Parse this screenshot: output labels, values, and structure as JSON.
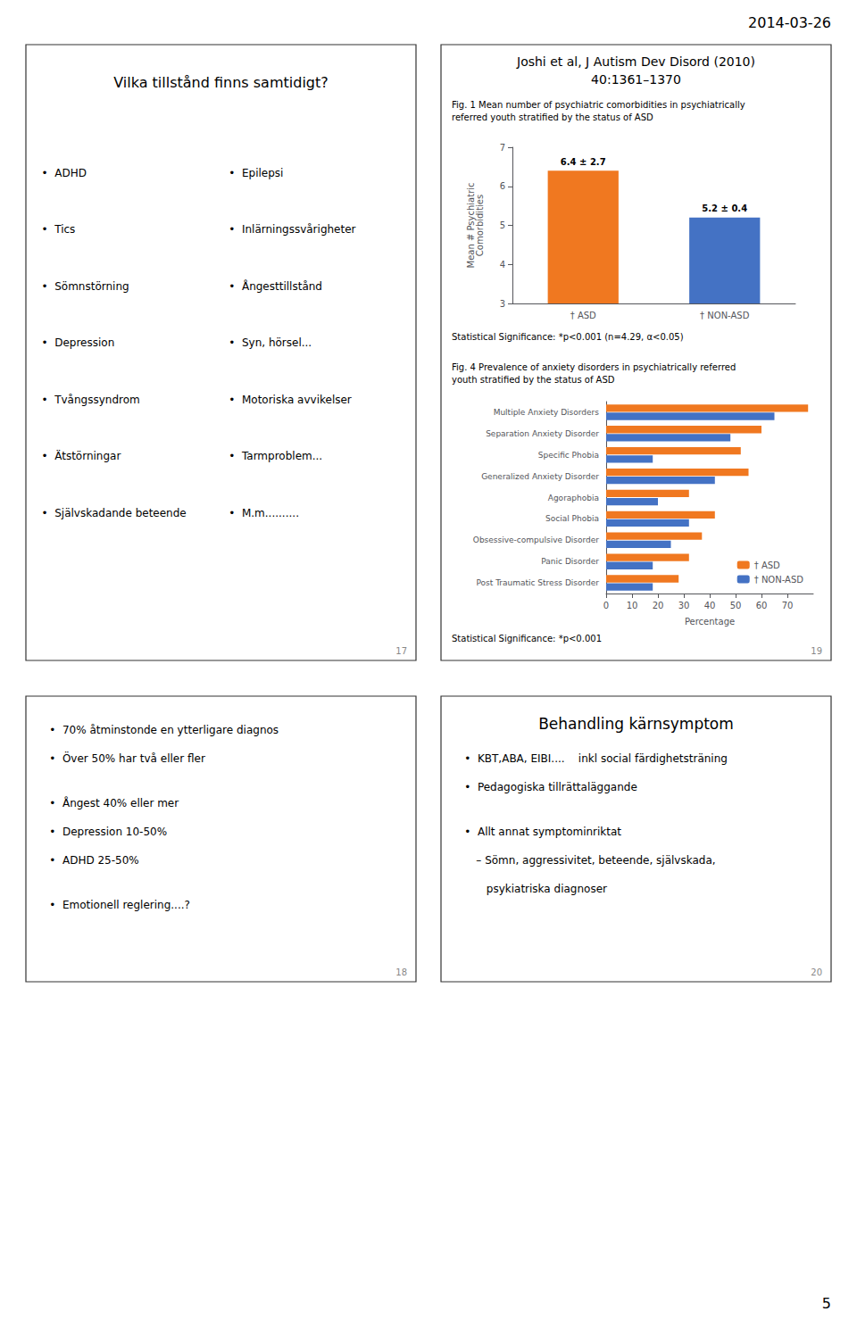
{
  "date": "2014-03-26",
  "page_number": "5",
  "slides": [
    {
      "slide_number": "17",
      "title": "Vilka tillstånd finns samtidigt?",
      "columns": [
        [
          "•  ADHD",
          "•  Tics",
          "•  Sömnstörning",
          "•  Depression",
          "•  Tvångssyndrom",
          "•  Ätstörningar",
          "•  Självskadande beteende"
        ],
        [
          "•  Epilepsi",
          "•  Inlärningssvårigheter",
          "•  Ångesttillstånd",
          "•  Syn, hörsel...",
          "•  Motoriska avvikelser",
          "•  Tarmproblem...",
          "•  M.m.........."
        ]
      ]
    },
    {
      "slide_number": "19",
      "title": [
        "Joshi et al, J Autism Dev Disord (2010)",
        "40:1361–1370"
      ]
    },
    {
      "slide_number": "18",
      "groups": [
        [
          "•  70% åtminstonde en ytterligare diagnos",
          "•  Över 50% har två eller fler"
        ],
        [
          "•  Ångest 40% eller mer",
          "•  Depression 10-50%",
          "•  ADHD 25-50%"
        ],
        [
          "•  Emotionell reglering....?"
        ]
      ]
    },
    {
      "slide_number": "20",
      "title": "Behandling kärnsymptom",
      "groups": [
        [
          "•  KBT,ABA, EIBI....    inkl social färdighetsträning",
          "•  Pedagogiska tillrättaläggande"
        ],
        [
          "•  Allt annat symptominriktat",
          "– Sömn, aggressivitet, beteende, självskada,",
          "   psykiatriska diagnoser"
        ]
      ]
    }
  ],
  "chart_data": [
    {
      "type": "bar",
      "title": "Fig. 1 Mean number of psychiatric comorbidities in psychiatrically",
      "subtitle": "referred youth stratified by the status of ASD",
      "categories": [
        "† ASD",
        "† NON-ASD"
      ],
      "values": [
        6.4,
        5.2
      ],
      "colors": [
        "#f07820",
        "#4472c4"
      ],
      "data_labels": true,
      "value_labels": [
        "6.4 ± 2.7",
        "5.2 ± 0.4"
      ],
      "ylabel": "Mean # Psychiatric\nComorbidities",
      "ylim": [
        3,
        7
      ],
      "yticks": [
        3,
        4,
        5,
        6,
        7
      ],
      "annotations": [
        "Statistical Significance: *p<0.001 (n=4.29, α<0.05)"
      ]
    },
    {
      "type": "bar",
      "orientation": "horizontal",
      "title": "Fig. 4 Prevalence of anxiety disorders in psychiatrically referred",
      "subtitle": "youth stratified by the status of ASD",
      "categories": [
        "Multiple Anxiety Disorders",
        "Separation Anxiety Disorder",
        "Specific Phobia",
        "Generalized Anxiety Disorder",
        "Agoraphobia",
        "Social Phobia",
        "Obsessive-compulsive Disorder",
        "Panic Disorder",
        "Post Traumatic Stress Disorder"
      ],
      "series": [
        {
          "name": "† ASD",
          "color": "#f07820",
          "values": [
            78,
            60,
            52,
            55,
            32,
            42,
            37,
            32,
            28
          ]
        },
        {
          "name": "† NON-ASD",
          "color": "#4472c4",
          "values": [
            65,
            48,
            18,
            42,
            20,
            32,
            25,
            18,
            18
          ]
        }
      ],
      "xlabel": "Percentage",
      "xlim": [
        0,
        80
      ],
      "xticks": [
        0,
        10,
        20,
        30,
        40,
        50,
        60,
        70
      ],
      "legend": "lower right",
      "annotations": [
        "Statistical Significance: *p<0.001"
      ]
    }
  ]
}
